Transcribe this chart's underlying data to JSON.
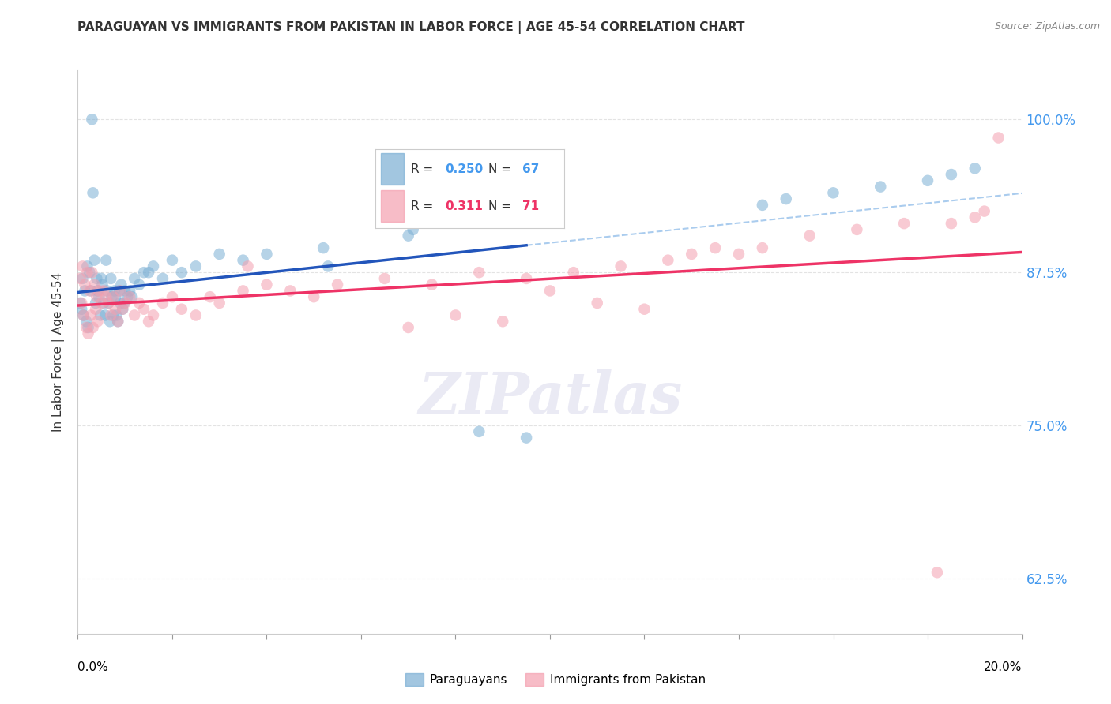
{
  "title": "PARAGUAYAN VS IMMIGRANTS FROM PAKISTAN IN LABOR FORCE | AGE 45-54 CORRELATION CHART",
  "source": "Source: ZipAtlas.com",
  "ylabel": "In Labor Force | Age 45-54",
  "xmin": 0.0,
  "xmax": 20.0,
  "ymin": 58.0,
  "ymax": 104.0,
  "yticks": [
    62.5,
    75.0,
    87.5,
    100.0
  ],
  "ytick_labels": [
    "62.5%",
    "75.0%",
    "87.5%",
    "100.0%"
  ],
  "color_blue": "#7BAFD4",
  "color_pink": "#F4A0B0",
  "color_trendline_blue": "#2255BB",
  "color_trendline_pink": "#EE3366",
  "color_dashed": "#AACCEE",
  "blue_x": [
    0.05,
    0.08,
    0.1,
    0.12,
    0.15,
    0.18,
    0.2,
    0.22,
    0.25,
    0.28,
    0.3,
    0.32,
    0.35,
    0.38,
    0.4,
    0.42,
    0.45,
    0.48,
    0.5,
    0.52,
    0.55,
    0.58,
    0.6,
    0.62,
    0.65,
    0.68,
    0.7,
    0.72,
    0.75,
    0.78,
    0.8,
    0.82,
    0.85,
    0.88,
    0.9,
    0.92,
    0.95,
    0.98,
    1.0,
    1.05,
    1.1,
    1.15,
    1.2,
    1.3,
    1.4,
    1.5,
    1.6,
    1.8,
    2.0,
    2.2,
    2.5,
    3.0,
    3.5,
    4.0,
    5.2,
    5.3,
    7.0,
    7.1,
    8.5,
    9.5,
    14.5,
    15.0,
    16.0,
    17.0,
    18.0,
    18.5,
    19.0
  ],
  "blue_y": [
    85.0,
    84.5,
    87.0,
    84.0,
    86.0,
    83.5,
    88.0,
    83.0,
    87.5,
    86.0,
    100.0,
    94.0,
    88.5,
    85.0,
    87.0,
    86.0,
    85.5,
    84.0,
    87.0,
    86.5,
    85.0,
    84.0,
    88.5,
    86.0,
    85.0,
    83.5,
    87.0,
    85.5,
    84.0,
    86.0,
    85.5,
    84.0,
    83.5,
    86.0,
    85.0,
    86.5,
    84.5,
    85.0,
    86.0,
    85.5,
    86.0,
    85.5,
    87.0,
    86.5,
    87.5,
    87.5,
    88.0,
    87.0,
    88.5,
    87.5,
    88.0,
    89.0,
    88.5,
    89.0,
    89.5,
    88.0,
    90.5,
    91.0,
    74.5,
    74.0,
    93.0,
    93.5,
    94.0,
    94.5,
    95.0,
    95.5,
    96.0
  ],
  "pink_x": [
    0.05,
    0.08,
    0.1,
    0.12,
    0.15,
    0.18,
    0.2,
    0.22,
    0.25,
    0.28,
    0.3,
    0.32,
    0.35,
    0.38,
    0.4,
    0.42,
    0.45,
    0.5,
    0.55,
    0.6,
    0.65,
    0.7,
    0.75,
    0.8,
    0.85,
    0.9,
    0.95,
    1.0,
    1.1,
    1.2,
    1.3,
    1.4,
    1.5,
    1.6,
    1.8,
    2.0,
    2.2,
    2.5,
    2.8,
    3.0,
    3.5,
    4.0,
    4.5,
    5.5,
    6.5,
    7.5,
    8.5,
    9.5,
    10.5,
    11.5,
    12.5,
    13.0,
    14.5,
    15.5,
    16.5,
    17.5,
    18.5,
    19.0,
    3.6,
    5.0,
    7.0,
    8.0,
    9.0,
    10.0,
    11.0,
    12.0,
    13.5,
    14.0,
    18.2,
    19.2,
    19.5
  ],
  "pink_y": [
    87.0,
    85.0,
    88.0,
    84.0,
    86.5,
    83.0,
    87.5,
    82.5,
    86.0,
    84.0,
    87.5,
    83.0,
    86.5,
    84.5,
    85.5,
    83.5,
    86.0,
    85.0,
    86.0,
    85.5,
    85.0,
    84.0,
    85.5,
    84.5,
    83.5,
    86.0,
    84.5,
    85.0,
    85.5,
    84.0,
    85.0,
    84.5,
    83.5,
    84.0,
    85.0,
    85.5,
    84.5,
    84.0,
    85.5,
    85.0,
    86.0,
    86.5,
    86.0,
    86.5,
    87.0,
    86.5,
    87.5,
    87.0,
    87.5,
    88.0,
    88.5,
    89.0,
    89.5,
    90.5,
    91.0,
    91.5,
    91.5,
    92.0,
    88.0,
    85.5,
    83.0,
    84.0,
    83.5,
    86.0,
    85.0,
    84.5,
    89.5,
    89.0,
    63.0,
    92.5,
    98.5
  ]
}
